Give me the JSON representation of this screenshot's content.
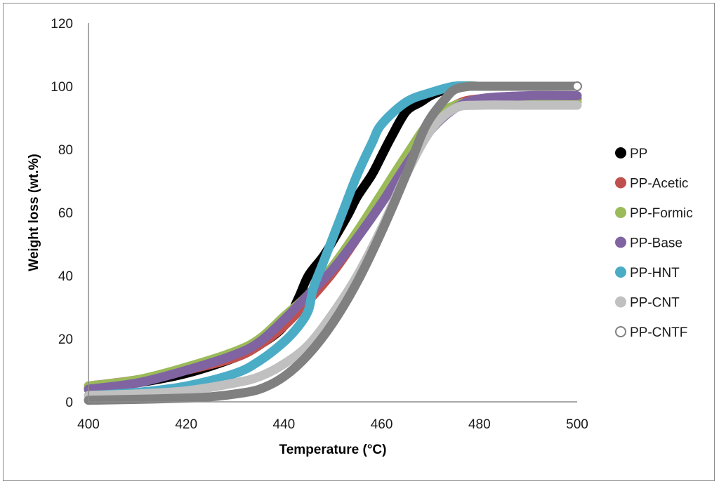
{
  "chart_data": {
    "type": "line",
    "title": "",
    "xlabel": "Temperature (°C)",
    "ylabel": "Weight loss (wt.%)",
    "xlim": [
      400,
      500
    ],
    "ylim": [
      0,
      120
    ],
    "xticks": [
      400,
      420,
      440,
      460,
      480,
      500
    ],
    "yticks": [
      0,
      20,
      40,
      60,
      80,
      100,
      120
    ],
    "grid": false,
    "legend_position": "right",
    "series": [
      {
        "name": "PP",
        "color": "#000000",
        "marker": "filled",
        "x": [
          400,
          410,
          420,
          430,
          435,
          440,
          443,
          445,
          448,
          450,
          453,
          455,
          458,
          460,
          462,
          465,
          468,
          470,
          473,
          475,
          480,
          490,
          500
        ],
        "y": [
          4,
          6,
          9,
          14,
          18,
          24,
          33,
          40,
          46,
          51,
          59,
          65,
          72,
          78,
          84,
          92,
          95,
          97,
          99,
          100,
          100,
          100,
          100
        ]
      },
      {
        "name": "PP-Acetic",
        "color": "#c0504d",
        "marker": "filled",
        "x": [
          400,
          410,
          420,
          430,
          435,
          440,
          445,
          450,
          455,
          460,
          465,
          470,
          475,
          480,
          490,
          500
        ],
        "y": [
          5,
          7,
          10,
          14,
          18,
          24,
          32,
          41,
          52,
          64,
          77,
          88,
          94,
          96,
          96,
          96
        ]
      },
      {
        "name": "PP-Formic",
        "color": "#9bbb59",
        "marker": "filled",
        "x": [
          400,
          410,
          420,
          430,
          435,
          440,
          445,
          450,
          455,
          460,
          465,
          470,
          475,
          480,
          490,
          500
        ],
        "y": [
          5,
          7,
          11,
          16,
          20,
          27,
          34,
          43,
          54,
          66,
          78,
          89,
          94,
          95,
          95,
          95
        ]
      },
      {
        "name": "PP-Base",
        "color": "#8064a2",
        "marker": "filled",
        "x": [
          400,
          410,
          420,
          430,
          435,
          440,
          445,
          450,
          455,
          460,
          465,
          470,
          475,
          480,
          490,
          500
        ],
        "y": [
          4,
          6,
          10,
          15,
          19,
          26,
          34,
          42,
          52,
          63,
          75,
          86,
          93,
          96,
          97,
          97
        ]
      },
      {
        "name": "PP-HNT",
        "color": "#4bacc6",
        "marker": "filled",
        "x": [
          400,
          410,
          420,
          430,
          435,
          440,
          443,
          445,
          446,
          448,
          450,
          452,
          455,
          458,
          460,
          465,
          470,
          475,
          480,
          490,
          500
        ],
        "y": [
          2,
          3,
          5,
          9,
          13,
          19,
          24,
          29,
          36,
          44,
          52,
          60,
          72,
          82,
          88,
          95,
          98,
          100,
          100,
          100,
          100
        ]
      },
      {
        "name": "PP-CNT",
        "color": "#c0c0c0",
        "marker": "filled",
        "x": [
          400,
          410,
          420,
          430,
          435,
          440,
          445,
          450,
          455,
          460,
          465,
          470,
          475,
          480,
          490,
          500
        ],
        "y": [
          2,
          2.5,
          3.5,
          6,
          8,
          12,
          18,
          28,
          40,
          55,
          72,
          86,
          93,
          94,
          94,
          94
        ]
      },
      {
        "name": "PP-CNTF",
        "color": "#808080",
        "marker": "open",
        "x": [
          400,
          410,
          420,
          425,
          430,
          435,
          440,
          445,
          450,
          455,
          460,
          465,
          468,
          470,
          473,
          475,
          478,
          480,
          490,
          500
        ],
        "y": [
          0.5,
          0.8,
          1.2,
          1.6,
          2.5,
          4,
          8,
          15,
          25,
          38,
          54,
          72,
          84,
          90,
          96,
          99,
          100,
          100,
          100,
          100
        ]
      }
    ]
  }
}
